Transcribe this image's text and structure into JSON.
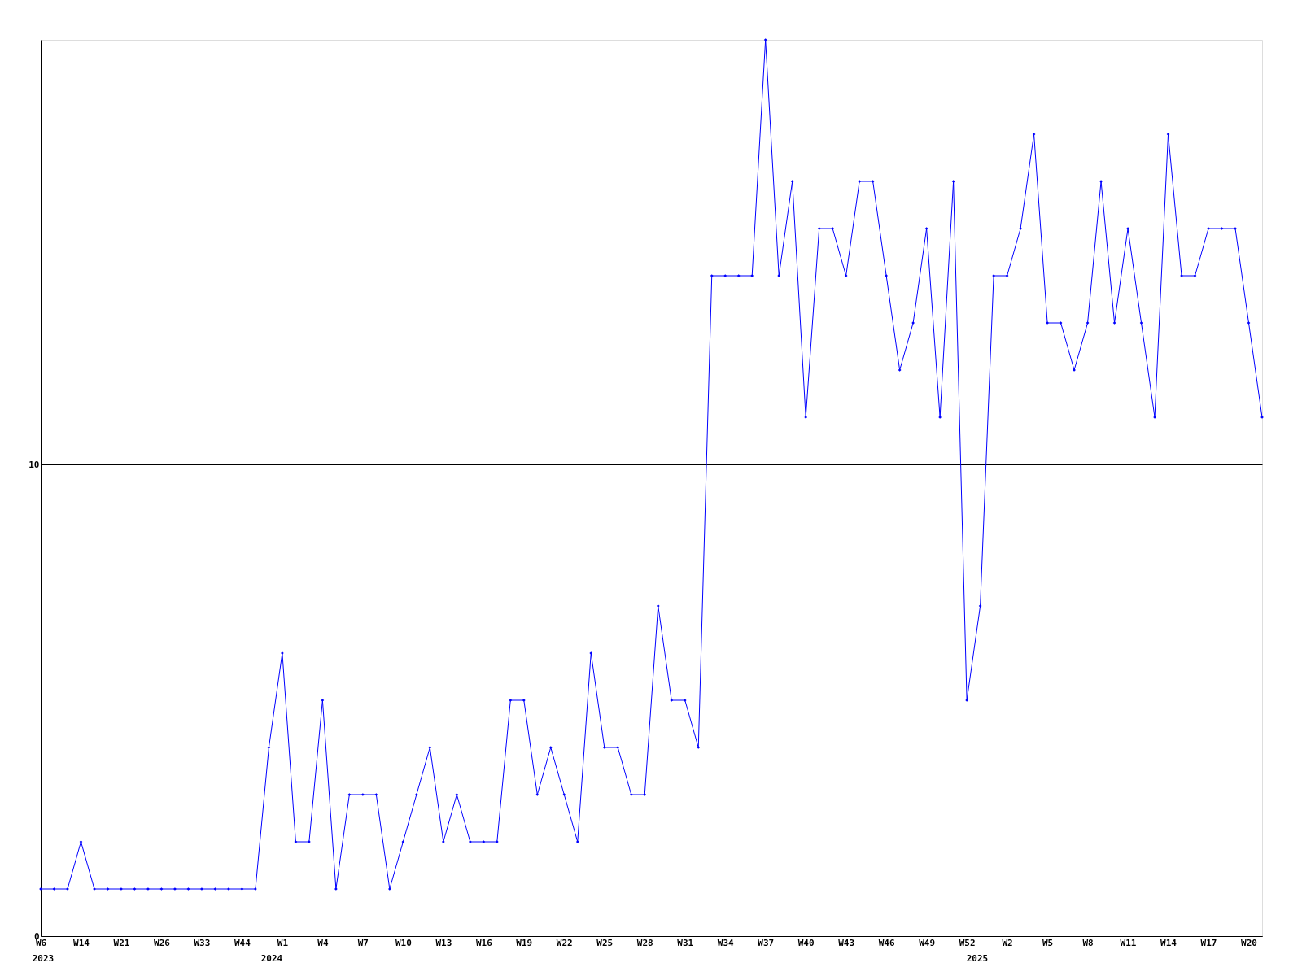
{
  "chart_data": {
    "type": "line",
    "categories": [
      "W6",
      null,
      null,
      "W14",
      null,
      null,
      "W21",
      null,
      null,
      "W26",
      null,
      null,
      "W33",
      null,
      null,
      "W44",
      null,
      null,
      "W1",
      null,
      null,
      "W4",
      null,
      null,
      "W7",
      null,
      null,
      "W10",
      null,
      null,
      "W13",
      null,
      null,
      "W16",
      null,
      null,
      "W19",
      null,
      null,
      "W22",
      null,
      null,
      "W25",
      null,
      null,
      "W28",
      null,
      null,
      "W31",
      null,
      null,
      "W34",
      null,
      null,
      "W37",
      null,
      null,
      "W40",
      null,
      null,
      "W43",
      null,
      null,
      "W46",
      null,
      null,
      "W49",
      null,
      null,
      "W52",
      null,
      null,
      "W2",
      null,
      null,
      "W5",
      null,
      null,
      "W8",
      null,
      null,
      "W11",
      null,
      null,
      "W14",
      null,
      null,
      "W17",
      null,
      null,
      "W20",
      null
    ],
    "series": [
      {
        "color": "#0000ff",
        "values": [
          1,
          1,
          1,
          2,
          1,
          1,
          1,
          1,
          1,
          1,
          1,
          1,
          1,
          1,
          1,
          1,
          1,
          4,
          6,
          2,
          2,
          5,
          1,
          3,
          3,
          3,
          1,
          2,
          3,
          4,
          2,
          3,
          2,
          2,
          2,
          5,
          5,
          3,
          4,
          3,
          2,
          6,
          4,
          4,
          3,
          3,
          7,
          5,
          5,
          4,
          14,
          14,
          14,
          14,
          19,
          14,
          16,
          11,
          15,
          15,
          14,
          16,
          16,
          14,
          12,
          13,
          15,
          11,
          16,
          5,
          7,
          14,
          14,
          15,
          17,
          13,
          13,
          12,
          13,
          16,
          13,
          15,
          13,
          11,
          17,
          14,
          14,
          15,
          15,
          15,
          13,
          11
        ]
      }
    ],
    "ylim": [
      0,
      19
    ],
    "yticks": [
      0,
      10
    ],
    "grid": "y",
    "marker": "diamond",
    "line_style": "solid",
    "annotations": [
      "2023",
      "2024",
      "2025"
    ]
  }
}
